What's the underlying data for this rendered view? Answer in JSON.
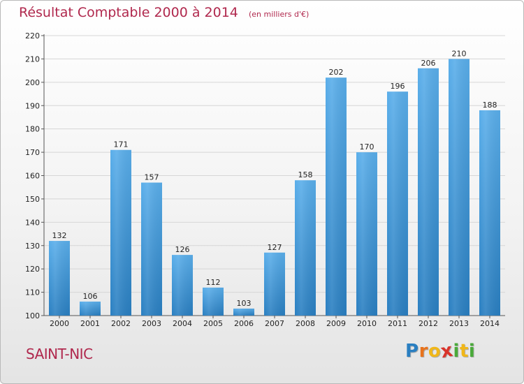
{
  "colors": {
    "title": "#b0284d",
    "bar_light": "#5aaeea",
    "bar_dark": "#2a7fc1",
    "brand": [
      "#e8731c",
      "#f0b71a",
      "#4aaa3a",
      "#2a7fc1",
      "#d9342b",
      "#b0284d"
    ]
  },
  "header": {
    "title": "Résultat Comptable 2000 à 2014",
    "subtitle": "(en milliers d'€)"
  },
  "footer": {
    "place": "SAINT-NIC",
    "brand_letters": [
      "P",
      "r",
      "o",
      "x",
      "i",
      "t",
      "i"
    ]
  },
  "chart_data": {
    "type": "bar",
    "title": "Résultat Comptable 2000 à 2014",
    "subtitle": "(en milliers d'€)",
    "categories": [
      "2000",
      "2001",
      "2002",
      "2003",
      "2004",
      "2005",
      "2006",
      "2007",
      "2008",
      "2009",
      "2010",
      "2011",
      "2012",
      "2013",
      "2014"
    ],
    "values": [
      132,
      106,
      171,
      157,
      126,
      112,
      103,
      127,
      158,
      202,
      170,
      196,
      206,
      210,
      188
    ],
    "ylim": [
      100,
      220
    ],
    "yticks": [
      100,
      110,
      120,
      130,
      140,
      150,
      160,
      170,
      180,
      190,
      200,
      210,
      220
    ],
    "grid": true,
    "data_labels": true,
    "legend": "none"
  }
}
